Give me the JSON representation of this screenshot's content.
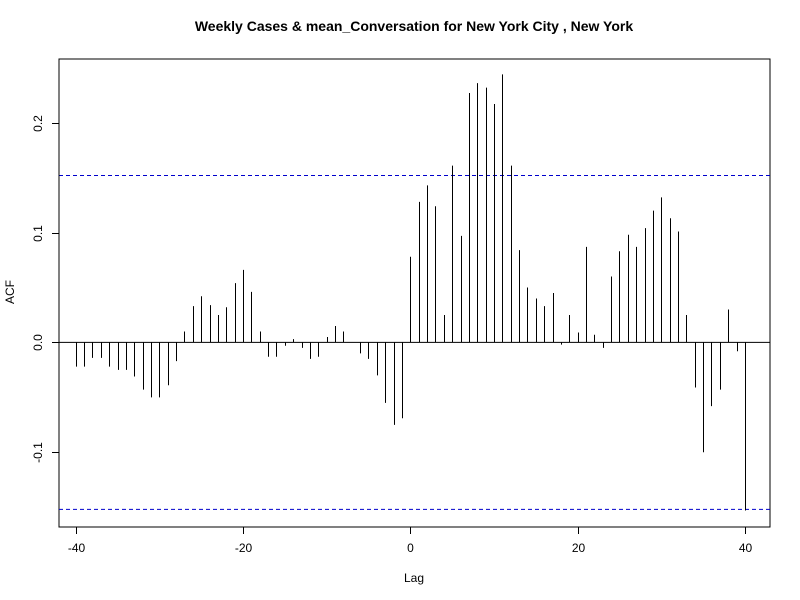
{
  "chart_data": {
    "type": "bar",
    "title": "Weekly Cases & mean_Conversation for New York City , New York",
    "xlabel": "Lag",
    "ylabel": "ACF",
    "xlim": [
      -42,
      43
    ],
    "ylim": [
      -0.168,
      0.258
    ],
    "x_ticks": [
      -40,
      -20,
      0,
      20,
      40
    ],
    "x_tick_labels": [
      "-40",
      "-20",
      "0",
      "20",
      "40"
    ],
    "y_ticks": [
      -0.1,
      0.0,
      0.1,
      0.2
    ],
    "y_tick_labels": [
      "-0.1",
      "0.0",
      "0.1",
      "0.2"
    ],
    "zero_line": 0,
    "confidence_bounds": [
      0.152,
      -0.152
    ],
    "confidence_color": "#0000cc",
    "bar_color": "#000000",
    "grid": false,
    "x": [
      -40,
      -39,
      -38,
      -37,
      -36,
      -35,
      -34,
      -33,
      -32,
      -31,
      -30,
      -29,
      -28,
      -27,
      -26,
      -25,
      -24,
      -23,
      -22,
      -21,
      -20,
      -19,
      -18,
      -17,
      -16,
      -15,
      -14,
      -13,
      -12,
      -11,
      -10,
      -9,
      -8,
      -7,
      -6,
      -5,
      -4,
      -3,
      -2,
      -1,
      0,
      1,
      2,
      3,
      4,
      5,
      6,
      7,
      8,
      9,
      10,
      11,
      12,
      13,
      14,
      15,
      16,
      17,
      18,
      19,
      20,
      21,
      22,
      23,
      24,
      25,
      26,
      27,
      28,
      29,
      30,
      31,
      32,
      33,
      34,
      35,
      36,
      37,
      38,
      39,
      40
    ],
    "values": [
      -0.022,
      -0.022,
      -0.014,
      -0.014,
      -0.022,
      -0.025,
      -0.025,
      -0.031,
      -0.043,
      -0.05,
      -0.05,
      -0.039,
      -0.017,
      0.01,
      0.033,
      0.042,
      0.034,
      0.025,
      0.032,
      0.054,
      0.066,
      0.046,
      0.01,
      -0.013,
      -0.013,
      -0.003,
      0.003,
      -0.005,
      -0.015,
      -0.013,
      0.005,
      0.015,
      0.01,
      0.0,
      -0.01,
      -0.015,
      -0.03,
      -0.055,
      -0.075,
      -0.069,
      0.078,
      0.128,
      0.143,
      0.124,
      0.025,
      0.161,
      0.097,
      0.227,
      0.236,
      0.232,
      0.217,
      0.244,
      0.161,
      0.084,
      0.05,
      0.04,
      0.033,
      0.045,
      -0.002,
      0.025,
      0.009,
      0.087,
      0.007,
      -0.005,
      0.06,
      0.083,
      0.098,
      0.087,
      0.104,
      0.12,
      0.132,
      0.113,
      0.101,
      0.025,
      -0.041,
      -0.1,
      -0.058,
      -0.043,
      0.03,
      -0.008,
      -0.153
    ]
  }
}
